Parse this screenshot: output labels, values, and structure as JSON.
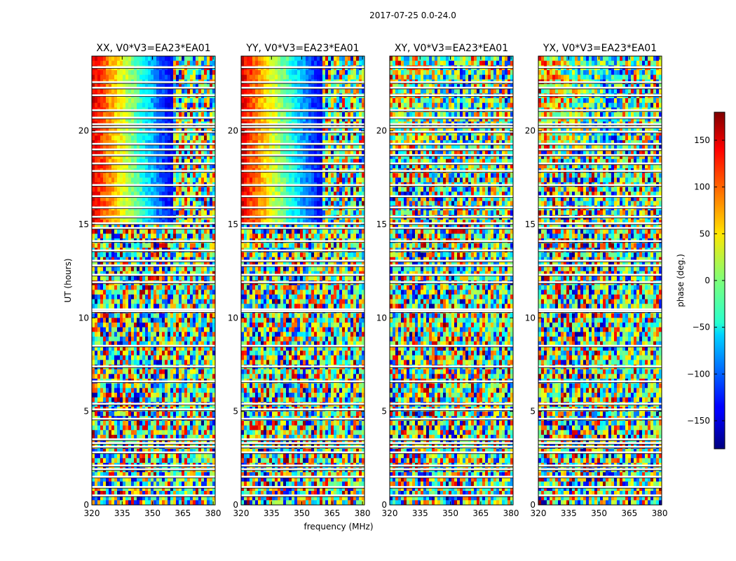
{
  "chart_data": {
    "type": "heatmap",
    "suptitle": "2017-07-25 0.0-24.0",
    "xlabel": "frequency (MHz)",
    "ylabel": "UT (hours)",
    "xlim": [
      320,
      381
    ],
    "ylim": [
      0,
      24
    ],
    "xticks": [
      320,
      335,
      350,
      365,
      380
    ],
    "yticks": [
      0,
      5,
      10,
      15,
      20
    ],
    "colormap": "jet",
    "panels": [
      {
        "title": "XX, V0*V3=EA23*EA01",
        "polarization": "XX",
        "coherent_gradient_hours": [
          15,
          24
        ],
        "gradient_strength": 1.0
      },
      {
        "title": "YY, V0*V3=EA23*EA01",
        "polarization": "YY",
        "coherent_gradient_hours": [
          15,
          24
        ],
        "gradient_strength": 1.0
      },
      {
        "title": "XY, V0*V3=EA23*EA01",
        "polarization": "XY",
        "coherent_gradient_hours": [
          19,
          24
        ],
        "gradient_strength": 0.35
      },
      {
        "title": "YX, V0*V3=EA23*EA01",
        "polarization": "YX",
        "coherent_gradient_hours": [
          19,
          24
        ],
        "gradient_strength": 0.45
      }
    ],
    "blank_rows_hours": [
      23.4,
      22.6,
      22.3,
      21.9,
      21.1,
      20.7,
      20.35,
      20.2,
      19.95,
      19.3,
      19.0,
      18.7,
      18.25,
      17.85,
      17.1,
      16.5,
      15.9,
      15.4,
      15.05,
      14.8,
      14.1,
      13.6,
      13.05,
      12.8,
      12.3,
      11.9,
      10.45,
      10.35,
      8.5,
      7.4,
      6.6,
      5.4,
      5.1,
      4.6,
      3.5,
      3.3,
      3.1,
      2.8,
      2.1,
      1.9,
      1.5,
      0.95,
      0.5
    ],
    "colorbar": {
      "label": "phase (deg.)",
      "range": [
        -180,
        180
      ],
      "ticks": [
        150,
        100,
        50,
        0,
        -50,
        -100,
        -150
      ],
      "tick_labels": [
        "150",
        "100",
        "50",
        "0",
        "−50",
        "−100",
        "−150"
      ]
    }
  }
}
